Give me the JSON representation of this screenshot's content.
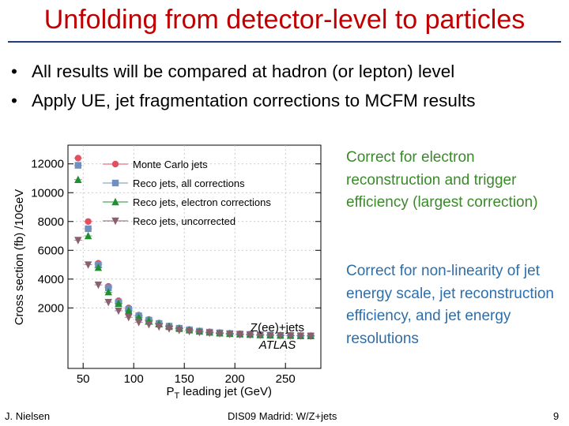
{
  "slide": {
    "title": "Unfolding from detector-level to particles",
    "bullets": [
      "All results will be compared at hadron (or lepton) level",
      "Apply UE, jet fragmentation corrections to MCFM results"
    ],
    "note_electron": "Correct for electron reconstruction and trigger efficiency (largest correction)",
    "note_jet": "Correct for non-linearity of jet energy scale, jet reconstruction efficiency, and jet energy resolutions"
  },
  "footer": {
    "author": "J. Nielsen",
    "event": "DIS09 Madrid: W/Z+jets",
    "page": "9"
  },
  "colors": {
    "title": "#c00000",
    "rule": "#1f3d7a",
    "note_green": "#3a8a2a",
    "note_blue": "#2f6ea8",
    "mc": "#e05060",
    "reco_all": "#6f8fc0",
    "reco_electron": "#1f8f2f",
    "reco_uncorr": "#8a6070"
  },
  "chart_data": {
    "type": "scatter",
    "xlabel": "P",
    "xlabel_sub": "T",
    "xlabel_rest": " leading jet (GeV)",
    "ylabel": "Cross section (fb) /10GeV",
    "xlim": [
      35,
      285
    ],
    "ylim": [
      -2200,
      13300
    ],
    "xticks": [
      50,
      100,
      150,
      200,
      250
    ],
    "yticks": [
      2000,
      4000,
      6000,
      8000,
      10000,
      12000
    ],
    "annotation": "Z(ee)+jets",
    "annotation2": "ATLAS",
    "legend_position": "top-right",
    "series": [
      {
        "name": "Monte Carlo jets",
        "marker": "circle",
        "color": "#e05060",
        "x": [
          45,
          55,
          65,
          75,
          85,
          95,
          105,
          115,
          125,
          135,
          145,
          155,
          165,
          175,
          185,
          195,
          205,
          215,
          225,
          235,
          245,
          255,
          265,
          275
        ],
        "y": [
          12400,
          8000,
          5100,
          3500,
          2500,
          2000,
          1500,
          1200,
          950,
          750,
          600,
          500,
          400,
          330,
          280,
          230,
          200,
          170,
          140,
          120,
          100,
          90,
          75,
          65
        ]
      },
      {
        "name": "Reco jets, all corrections",
        "marker": "square",
        "color": "#6f8fc0",
        "x": [
          45,
          55,
          65,
          75,
          85,
          95,
          105,
          115,
          125,
          135,
          145,
          155,
          165,
          175,
          185,
          195,
          205,
          215,
          225,
          235,
          245,
          255,
          265,
          275
        ],
        "y": [
          11900,
          7500,
          5000,
          3400,
          2400,
          1900,
          1450,
          1150,
          920,
          730,
          590,
          480,
          390,
          320,
          270,
          220,
          190,
          160,
          135,
          115,
          95,
          85,
          70,
          60
        ]
      },
      {
        "name": "Reco jets, electron corrections",
        "marker": "triangle-up",
        "color": "#1f8f2f",
        "x": [
          45,
          55,
          65,
          75,
          85,
          95,
          105,
          115,
          125,
          135,
          145,
          155,
          165,
          175,
          185,
          195,
          205,
          215,
          225,
          235,
          245,
          255,
          265,
          275
        ],
        "y": [
          10900,
          7000,
          4800,
          3100,
          2300,
          1800,
          1350,
          1100,
          880,
          700,
          560,
          460,
          370,
          300,
          250,
          210,
          180,
          150,
          125,
          105,
          90,
          80,
          65,
          55
        ]
      },
      {
        "name": "Reco jets, uncorrected",
        "marker": "triangle-down",
        "color": "#8a6070",
        "x": [
          45,
          55,
          65,
          75,
          85,
          95,
          105,
          115,
          125,
          135,
          145,
          155,
          165,
          175,
          185,
          195,
          205,
          215,
          225,
          235,
          245,
          255,
          265,
          275
        ],
        "y": [
          6700,
          5000,
          3600,
          2400,
          1800,
          1350,
          1000,
          850,
          700,
          560,
          460,
          380,
          310,
          260,
          220,
          180,
          150,
          130,
          110,
          95,
          80,
          70,
          60,
          50
        ]
      }
    ]
  }
}
